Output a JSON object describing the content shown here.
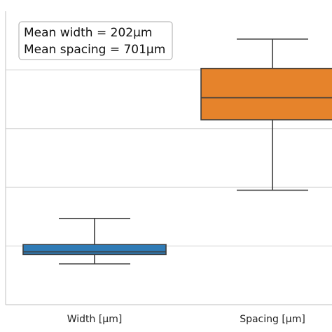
{
  "chart_data": {
    "type": "box",
    "categories": [
      "Width [μm]",
      "Spacing [μm]"
    ],
    "series": [
      {
        "category": "Width [μm]",
        "color": "#2f7bb6",
        "whisker_low": -105,
        "q1": 55,
        "median": 100,
        "q3": 225,
        "whisker_high": 670
      },
      {
        "category": "Spacing [μm]",
        "color": "#e6832b",
        "whisker_low": 1150,
        "q1": 2350,
        "median": 2725,
        "q3": 3225,
        "whisker_high": 3725
      }
    ],
    "annotation_lines": [
      "Mean width = 202μm",
      "Mean spacing = 701μm"
    ],
    "ylim": [
      -800,
      4200
    ],
    "grid": true,
    "legend_placement": "top-left",
    "title": "",
    "xlabel": "",
    "ylabel": ""
  }
}
